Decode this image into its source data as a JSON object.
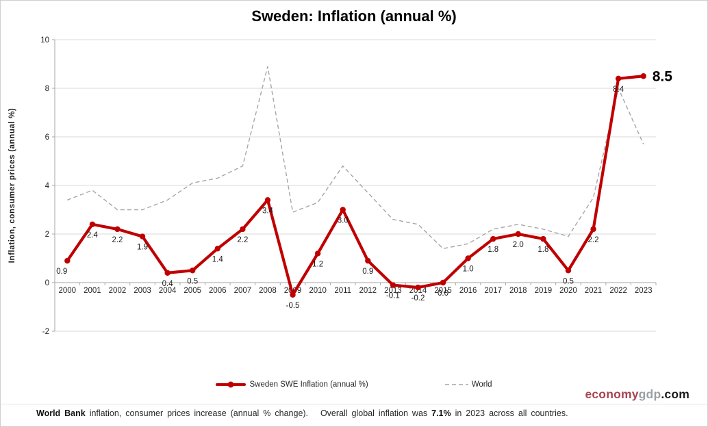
{
  "title": "Sweden: Inflation (annual %)",
  "y_axis_title": "Inflation, consumer prices (annual %)",
  "legend": [
    {
      "label": "Sweden SWE Inflation (annual %)"
    },
    {
      "label": "World"
    }
  ],
  "logo": {
    "economy": "economy",
    "gdp": "gdp",
    "com": ".com"
  },
  "footnote": {
    "part1": "World Bank",
    "part2": " inflation, consumer prices increase (annual % change).   Overall global inflation was ",
    "part3": "7.1%",
    "part4": " in 2023 across all countries."
  },
  "colors": {
    "sweden_line": "#c00000",
    "world_line": "#a6a6a6",
    "grid": "#d9d9d9",
    "axis": "#a6a6a6",
    "label": "#1a1a1a",
    "logo_red": "#a8434f",
    "logo_gray": "#9aa0a6"
  },
  "chart_data": {
    "type": "line",
    "title": "Sweden: Inflation (annual %)",
    "xlabel": "",
    "ylabel": "Inflation, consumer prices (annual %)",
    "ylim": [
      -2,
      10
    ],
    "yticks": [
      10,
      8,
      6,
      4,
      2,
      0,
      -2
    ],
    "grid": true,
    "legend_position": "bottom",
    "categories": [
      "2000",
      "2001",
      "2002",
      "2003",
      "2004",
      "2005",
      "2006",
      "2007",
      "2008",
      "2009",
      "2010",
      "2011",
      "2012",
      "2013",
      "2014",
      "2015",
      "2016",
      "2017",
      "2018",
      "2019",
      "2020",
      "2021",
      "2022",
      "2023"
    ],
    "series": [
      {
        "name": "Sweden SWE Inflation (annual %)",
        "color": "#c00000",
        "style": "solid",
        "marker": true,
        "values": [
          0.9,
          2.4,
          2.2,
          1.9,
          0.4,
          0.5,
          1.4,
          2.2,
          3.4,
          -0.5,
          1.2,
          3.0,
          0.9,
          -0.1,
          -0.2,
          0.0,
          1.0,
          1.8,
          2.0,
          1.8,
          0.5,
          2.2,
          8.4,
          8.5
        ],
        "labels": [
          "0.9",
          "2.4",
          "2.2",
          "1.9",
          "0.4",
          "0.5",
          "1.4",
          "2.2",
          "3.4",
          "-0.5",
          "1.2",
          "3.0",
          "0.9",
          "-0.1",
          "-0.2",
          "0.0",
          "1.0",
          "1.8",
          "2.0",
          "1.8",
          "0.5",
          "2.2",
          "8.4",
          "8.5"
        ]
      },
      {
        "name": "World",
        "color": "#a6a6a6",
        "style": "dashed",
        "marker": false,
        "values": [
          3.4,
          3.8,
          3.0,
          3.0,
          3.4,
          4.1,
          4.3,
          4.8,
          8.9,
          2.9,
          3.3,
          4.8,
          3.7,
          2.6,
          2.4,
          1.4,
          1.6,
          2.2,
          2.4,
          2.2,
          1.9,
          3.5,
          8.0,
          5.7
        ]
      }
    ],
    "final_value_callout": "8.5"
  }
}
